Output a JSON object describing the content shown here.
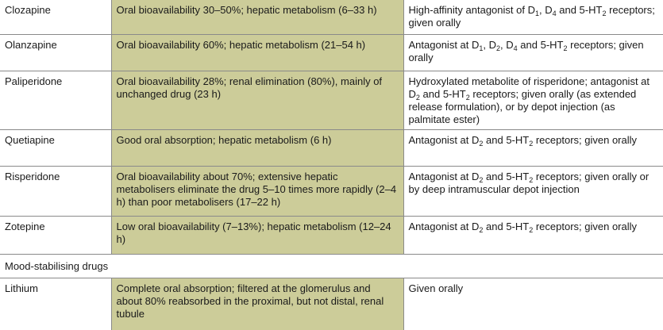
{
  "rows": [
    {
      "drug": "Clozapine",
      "pharmacokinetics": "Oral bioavailability 30–50%; hepatic metabolism (6–33 h)",
      "notes": [
        {
          "t": "High-affinity antagonist of D"
        },
        {
          "t": "1",
          "sub": true
        },
        {
          "t": ", D"
        },
        {
          "t": "4",
          "sub": true
        },
        {
          "t": " and 5-HT"
        },
        {
          "t": "2",
          "sub": true
        },
        {
          "t": " receptors; given orally"
        }
      ]
    },
    {
      "drug": "Olanzapine",
      "pharmacokinetics": "Oral bioavailability 60%; hepatic metabolism (21–54 h)",
      "notes": [
        {
          "t": "Antagonist at D"
        },
        {
          "t": "1",
          "sub": true
        },
        {
          "t": ", D"
        },
        {
          "t": "2",
          "sub": true
        },
        {
          "t": ", D"
        },
        {
          "t": "4",
          "sub": true
        },
        {
          "t": " and 5-HT"
        },
        {
          "t": "2",
          "sub": true
        },
        {
          "t": " receptors; given orally"
        }
      ]
    },
    {
      "drug": "Paliperidone",
      "pharmacokinetics": "Oral bioavailability 28%; renal elimination (80%), mainly of unchanged drug (23 h)",
      "notes": [
        {
          "t": "Hydroxylated metabolite of risperidone; antagonist at D"
        },
        {
          "t": "2",
          "sub": true
        },
        {
          "t": " and 5-HT"
        },
        {
          "t": "2",
          "sub": true
        },
        {
          "t": " receptors; given orally (as extended release formulation), or by depot injection (as palmitate ester)"
        }
      ]
    },
    {
      "drug": "Quetiapine",
      "pharmacokinetics": "Good oral absorption; hepatic metabolism (6 h)",
      "notes": [
        {
          "t": "Antagonist at D"
        },
        {
          "t": "2",
          "sub": true
        },
        {
          "t": " and 5-HT"
        },
        {
          "t": "2",
          "sub": true
        },
        {
          "t": " receptors; given orally"
        }
      ]
    },
    {
      "drug": "Risperidone",
      "pharmacokinetics": "Oral bioavailability about 70%; extensive hepatic metabolisers eliminate the drug 5–10 times more rapidly (2–4 h) than poor metabolisers (17–22 h)",
      "notes": [
        {
          "t": "Antagonist at D"
        },
        {
          "t": "2",
          "sub": true
        },
        {
          "t": " and 5-HT"
        },
        {
          "t": "2",
          "sub": true
        },
        {
          "t": " receptors; given orally or by deep intramuscular depot injection"
        }
      ]
    },
    {
      "drug": "Zotepine",
      "pharmacokinetics": "Low oral bioavailability (7–13%); hepatic metabolism (12–24 h)",
      "notes": [
        {
          "t": "Antagonist at D"
        },
        {
          "t": "2",
          "sub": true
        },
        {
          "t": " and 5-HT"
        },
        {
          "t": "2",
          "sub": true
        },
        {
          "t": " receptors; given orally"
        }
      ]
    }
  ],
  "section_heading": "Mood-stabilising drugs",
  "section_rows": [
    {
      "drug": "Lithium",
      "pharmacokinetics": "Complete oral absorption; filtered at the glomerulus and about 80% reabsorbed in the proximal, but not distal, renal tubule",
      "notes": [
        {
          "t": "Given orally"
        }
      ]
    }
  ],
  "colors": {
    "pk_column": "#cccc99",
    "rule": "#8a8a8a"
  }
}
